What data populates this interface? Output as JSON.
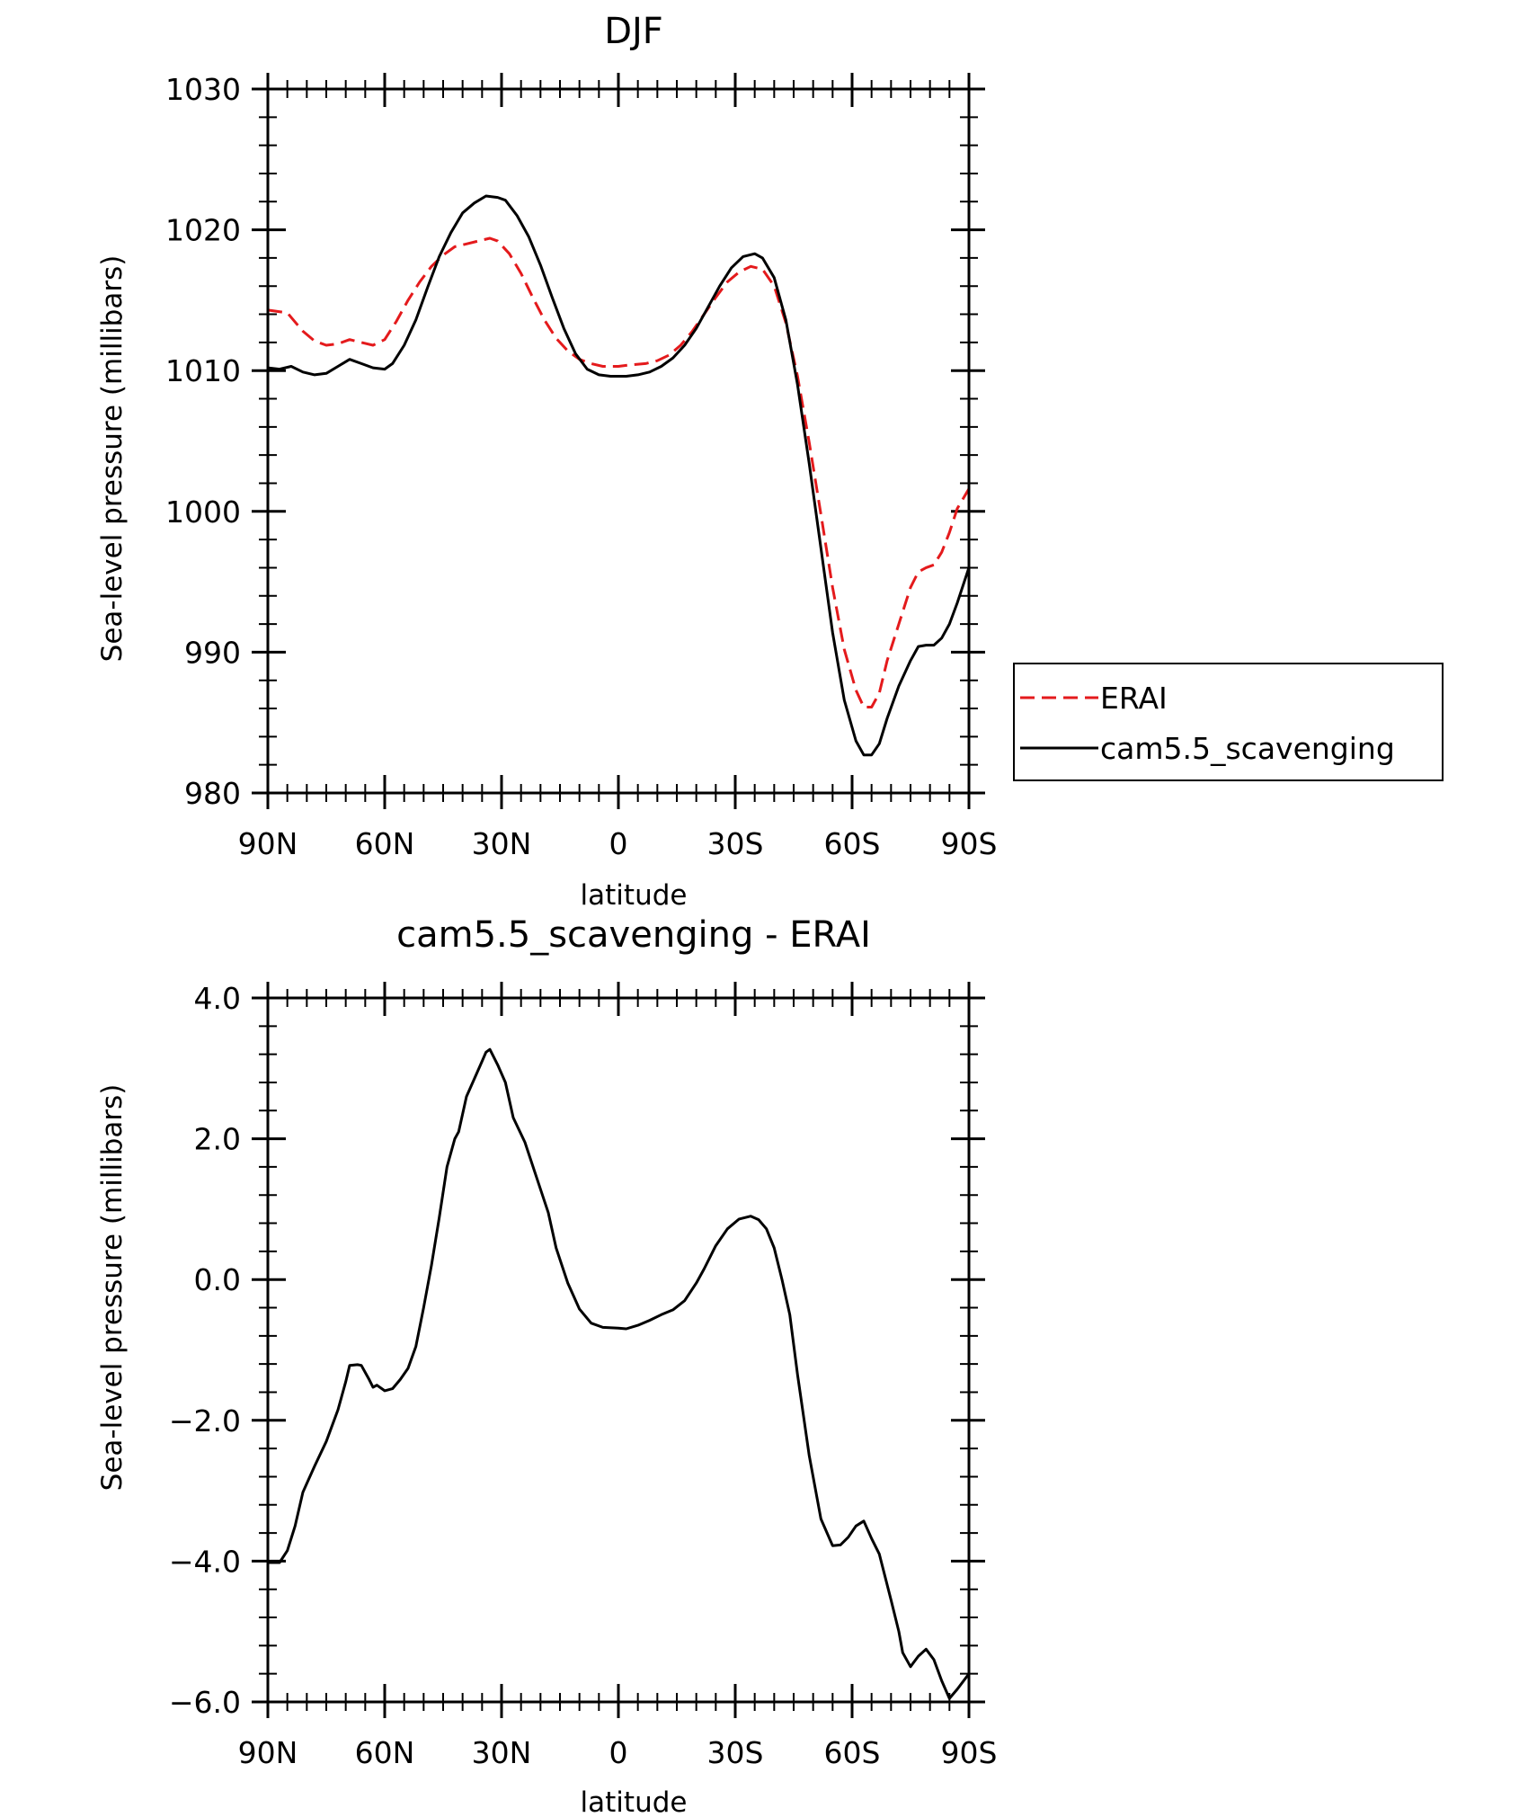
{
  "chart_data": [
    {
      "type": "line",
      "title": "DJF",
      "xlabel": "latitude",
      "ylabel": "Sea-level pressure (millibars)",
      "xlim": [
        90,
        -90
      ],
      "ylim": [
        980,
        1030
      ],
      "x_ticks": [
        {
          "value": 90,
          "label": "90N"
        },
        {
          "value": 60,
          "label": "60N"
        },
        {
          "value": 30,
          "label": "30N"
        },
        {
          "value": 0,
          "label": "0"
        },
        {
          "value": -30,
          "label": "30S"
        },
        {
          "value": -60,
          "label": "60S"
        },
        {
          "value": -90,
          "label": "90S"
        }
      ],
      "y_ticks": [
        {
          "value": 980,
          "label": "980"
        },
        {
          "value": 990,
          "label": "990"
        },
        {
          "value": 1000,
          "label": "1000"
        },
        {
          "value": 1010,
          "label": "1010"
        },
        {
          "value": 1020,
          "label": "1020"
        },
        {
          "value": 1030,
          "label": "1030"
        }
      ],
      "legend_position": "right",
      "series": [
        {
          "name": "ERAI",
          "color": "#e41a1c",
          "dash": true,
          "points": [
            [
              90,
              1014.3
            ],
            [
              85,
              1014.1
            ],
            [
              81,
              1012.8
            ],
            [
              78,
              1012.1
            ],
            [
              75,
              1011.8
            ],
            [
              72,
              1011.9
            ],
            [
              69,
              1012.2
            ],
            [
              66,
              1012.0
            ],
            [
              63,
              1011.8
            ],
            [
              60,
              1012.2
            ],
            [
              57,
              1013.5
            ],
            [
              54,
              1015.0
            ],
            [
              51,
              1016.3
            ],
            [
              48,
              1017.4
            ],
            [
              45,
              1018.2
            ],
            [
              42,
              1018.8
            ],
            [
              39,
              1019.0
            ],
            [
              36,
              1019.2
            ],
            [
              33,
              1019.4
            ],
            [
              31,
              1019.2
            ],
            [
              28,
              1018.3
            ],
            [
              25,
              1016.9
            ],
            [
              22,
              1015.2
            ],
            [
              19,
              1013.6
            ],
            [
              16,
              1012.3
            ],
            [
              13,
              1011.4
            ],
            [
              10,
              1010.8
            ],
            [
              7,
              1010.5
            ],
            [
              4,
              1010.3
            ],
            [
              0,
              1010.3
            ],
            [
              -3,
              1010.4
            ],
            [
              -7,
              1010.5
            ],
            [
              -10,
              1010.7
            ],
            [
              -13,
              1011.1
            ],
            [
              -16,
              1011.8
            ],
            [
              -19,
              1012.8
            ],
            [
              -22,
              1014.0
            ],
            [
              -25,
              1015.2
            ],
            [
              -28,
              1016.3
            ],
            [
              -31,
              1017.0
            ],
            [
              -34,
              1017.4
            ],
            [
              -37,
              1017.2
            ],
            [
              -40,
              1016.0
            ],
            [
              -43,
              1013.4
            ],
            [
              -46,
              1009.6
            ],
            [
              -49,
              1004.9
            ],
            [
              -52,
              999.8
            ],
            [
              -55,
              994.6
            ],
            [
              -58,
              990.2
            ],
            [
              -61,
              987.3
            ],
            [
              -63,
              986.1
            ],
            [
              -65,
              986.1
            ],
            [
              -67,
              987.1
            ],
            [
              -69,
              989.4
            ],
            [
              -72,
              992.0
            ],
            [
              -75,
              994.6
            ],
            [
              -77,
              995.7
            ],
            [
              -79,
              996.0
            ],
            [
              -81,
              996.2
            ],
            [
              -83,
              997.1
            ],
            [
              -85,
              998.5
            ],
            [
              -87,
              1000.2
            ],
            [
              -90,
              1001.6
            ]
          ]
        },
        {
          "name": "cam5.5_scavenging",
          "color": "#000000",
          "dash": false,
          "points": [
            [
              90,
              1010.2
            ],
            [
              87,
              1010.1
            ],
            [
              84,
              1010.3
            ],
            [
              81,
              1009.9
            ],
            [
              78,
              1009.7
            ],
            [
              75,
              1009.8
            ],
            [
              72,
              1010.3
            ],
            [
              69,
              1010.8
            ],
            [
              66,
              1010.5
            ],
            [
              63,
              1010.2
            ],
            [
              60,
              1010.1
            ],
            [
              58,
              1010.5
            ],
            [
              55,
              1011.8
            ],
            [
              52,
              1013.6
            ],
            [
              49,
              1015.9
            ],
            [
              46,
              1018.1
            ],
            [
              43,
              1019.8
            ],
            [
              40,
              1021.2
            ],
            [
              37,
              1021.9
            ],
            [
              34,
              1022.4
            ],
            [
              31,
              1022.3
            ],
            [
              29,
              1022.1
            ],
            [
              26,
              1021.0
            ],
            [
              23,
              1019.5
            ],
            [
              20,
              1017.5
            ],
            [
              17,
              1015.2
            ],
            [
              14,
              1013.0
            ],
            [
              11,
              1011.2
            ],
            [
              8,
              1010.1
            ],
            [
              5,
              1009.7
            ],
            [
              2,
              1009.6
            ],
            [
              -2,
              1009.6
            ],
            [
              -5,
              1009.7
            ],
            [
              -8,
              1009.9
            ],
            [
              -11,
              1010.3
            ],
            [
              -14,
              1010.9
            ],
            [
              -17,
              1011.8
            ],
            [
              -20,
              1013.0
            ],
            [
              -23,
              1014.5
            ],
            [
              -26,
              1016.0
            ],
            [
              -29,
              1017.3
            ],
            [
              -32,
              1018.1
            ],
            [
              -35,
              1018.3
            ],
            [
              -37,
              1018.0
            ],
            [
              -40,
              1016.6
            ],
            [
              -43,
              1013.6
            ],
            [
              -46,
              1009.0
            ],
            [
              -49,
              1003.4
            ],
            [
              -52,
              997.4
            ],
            [
              -55,
              991.4
            ],
            [
              -58,
              986.6
            ],
            [
              -61,
              983.7
            ],
            [
              -63,
              982.7
            ],
            [
              -65,
              982.7
            ],
            [
              -67,
              983.5
            ],
            [
              -69,
              985.3
            ],
            [
              -72,
              987.6
            ],
            [
              -75,
              989.4
            ],
            [
              -77,
              990.4
            ],
            [
              -79,
              990.5
            ],
            [
              -81,
              990.5
            ],
            [
              -83,
              991.0
            ],
            [
              -85,
              992.0
            ],
            [
              -87,
              993.5
            ],
            [
              -90,
              996.0
            ]
          ]
        }
      ]
    },
    {
      "type": "line",
      "title": "cam5.5_scavenging - ERAI",
      "xlabel": "latitude",
      "ylabel": "Sea-level pressure (millibars)",
      "xlim": [
        90,
        -90
      ],
      "ylim": [
        -6.0,
        4.0
      ],
      "x_ticks": [
        {
          "value": 90,
          "label": "90N"
        },
        {
          "value": 60,
          "label": "60N"
        },
        {
          "value": 30,
          "label": "30N"
        },
        {
          "value": 0,
          "label": "0"
        },
        {
          "value": -30,
          "label": "30S"
        },
        {
          "value": -60,
          "label": "60S"
        },
        {
          "value": -90,
          "label": "90S"
        }
      ],
      "y_ticks": [
        {
          "value": -6.0,
          "label": "−6.0"
        },
        {
          "value": -4.0,
          "label": "−4.0"
        },
        {
          "value": -2.0,
          "label": "−2.0"
        },
        {
          "value": 0.0,
          "label": "0.0"
        },
        {
          "value": 2.0,
          "label": "2.0"
        },
        {
          "value": 4.0,
          "label": "4.0"
        }
      ],
      "series": [
        {
          "name": "",
          "color": "#000000",
          "dash": false,
          "points": [
            [
              90,
              -4.02
            ],
            [
              87,
              -4.02
            ],
            [
              85,
              -3.85
            ],
            [
              83,
              -3.5
            ],
            [
              81,
              -3.02
            ],
            [
              78,
              -2.65
            ],
            [
              75,
              -2.3
            ],
            [
              72,
              -1.85
            ],
            [
              70,
              -1.45
            ],
            [
              69,
              -1.22
            ],
            [
              67,
              -1.21
            ],
            [
              66,
              -1.22
            ],
            [
              64,
              -1.42
            ],
            [
              63,
              -1.53
            ],
            [
              62,
              -1.5
            ],
            [
              60,
              -1.58
            ],
            [
              58,
              -1.55
            ],
            [
              56,
              -1.42
            ],
            [
              54,
              -1.26
            ],
            [
              52,
              -0.95
            ],
            [
              50,
              -0.4
            ],
            [
              48,
              0.2
            ],
            [
              46,
              0.88
            ],
            [
              44,
              1.6
            ],
            [
              42,
              2.0
            ],
            [
              41,
              2.1
            ],
            [
              39,
              2.6
            ],
            [
              37,
              2.85
            ],
            [
              35,
              3.1
            ],
            [
              34,
              3.23
            ],
            [
              33,
              3.27
            ],
            [
              31,
              3.05
            ],
            [
              29,
              2.8
            ],
            [
              27,
              2.3
            ],
            [
              24,
              1.95
            ],
            [
              21,
              1.45
            ],
            [
              18,
              0.95
            ],
            [
              16,
              0.45
            ],
            [
              13,
              -0.05
            ],
            [
              10,
              -0.42
            ],
            [
              7,
              -0.62
            ],
            [
              4,
              -0.68
            ],
            [
              0,
              -0.69
            ],
            [
              -2,
              -0.7
            ],
            [
              -5,
              -0.65
            ],
            [
              -8,
              -0.58
            ],
            [
              -11,
              -0.5
            ],
            [
              -14,
              -0.43
            ],
            [
              -17,
              -0.3
            ],
            [
              -20,
              -0.05
            ],
            [
              -22,
              0.15
            ],
            [
              -25,
              0.48
            ],
            [
              -28,
              0.72
            ],
            [
              -31,
              0.86
            ],
            [
              -34,
              0.9
            ],
            [
              -36,
              0.85
            ],
            [
              -38,
              0.72
            ],
            [
              -40,
              0.45
            ],
            [
              -42,
              0.0
            ],
            [
              -44,
              -0.5
            ],
            [
              -46,
              -1.35
            ],
            [
              -49,
              -2.5
            ],
            [
              -52,
              -3.4
            ],
            [
              -55,
              -3.78
            ],
            [
              -57,
              -3.77
            ],
            [
              -59,
              -3.66
            ],
            [
              -61,
              -3.5
            ],
            [
              -63,
              -3.43
            ],
            [
              -65,
              -3.68
            ],
            [
              -67,
              -3.9
            ],
            [
              -70,
              -4.55
            ],
            [
              -72,
              -5.0
            ],
            [
              -73,
              -5.3
            ],
            [
              -75,
              -5.5
            ],
            [
              -77,
              -5.35
            ],
            [
              -79,
              -5.25
            ],
            [
              -81,
              -5.4
            ],
            [
              -83,
              -5.7
            ],
            [
              -85,
              -5.95
            ],
            [
              -87,
              -5.82
            ],
            [
              -90,
              -5.6
            ]
          ]
        }
      ]
    }
  ]
}
